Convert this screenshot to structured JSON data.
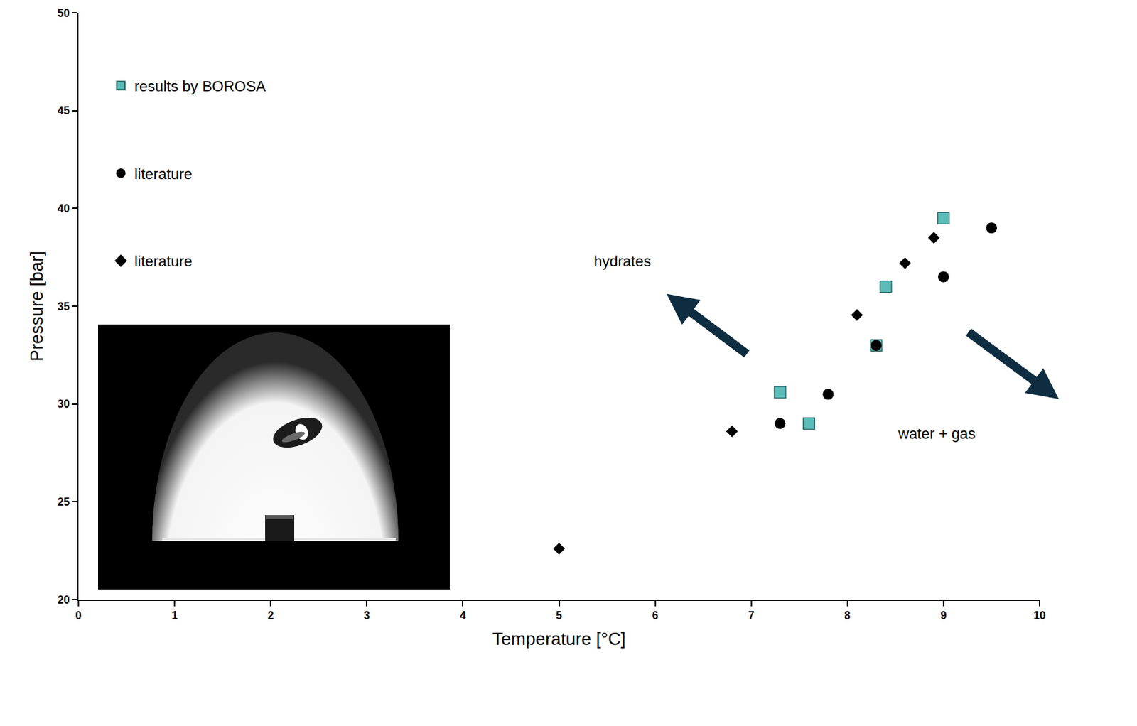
{
  "chart_data": {
    "type": "scatter",
    "x_label": "Temperature [°C]",
    "y_label": "Pressure [bar]",
    "xlim": [
      0,
      10
    ],
    "xticks": [
      0,
      1,
      2,
      3,
      4,
      5,
      6,
      7,
      8,
      9,
      10
    ],
    "ylim": [
      20,
      50
    ],
    "yticks": [
      20,
      25,
      30,
      35,
      40,
      45,
      50
    ],
    "grid": false,
    "legend": "upper left",
    "series": [
      {
        "name": "results by BOROSA",
        "color": "#5bbcb8",
        "marker": "square",
        "x": [
          7.3,
          7.6,
          8.3,
          8.4,
          9.0
        ],
        "values": [
          30.6,
          29.0,
          33.0,
          36.0,
          39.5
        ]
      },
      {
        "name": "literature",
        "color": "#000000",
        "marker": "circle",
        "x": [
          7.3,
          7.8,
          8.3,
          9.0,
          9.5
        ],
        "values": [
          29.0,
          30.5,
          33.0,
          36.5,
          39.0
        ]
      },
      {
        "name": "literature",
        "color": "#000000",
        "marker": "diamond",
        "x": [
          5.0,
          6.8,
          8.1,
          8.6,
          8.9
        ],
        "values": [
          22.6,
          28.6,
          34.55,
          37.2,
          38.5
        ]
      }
    ],
    "annotations": [
      {
        "text": "hydrates",
        "x": 5.66,
        "y": 37.3
      },
      {
        "text": "water + gas",
        "x": 8.93,
        "y": 28.5
      }
    ]
  }
}
